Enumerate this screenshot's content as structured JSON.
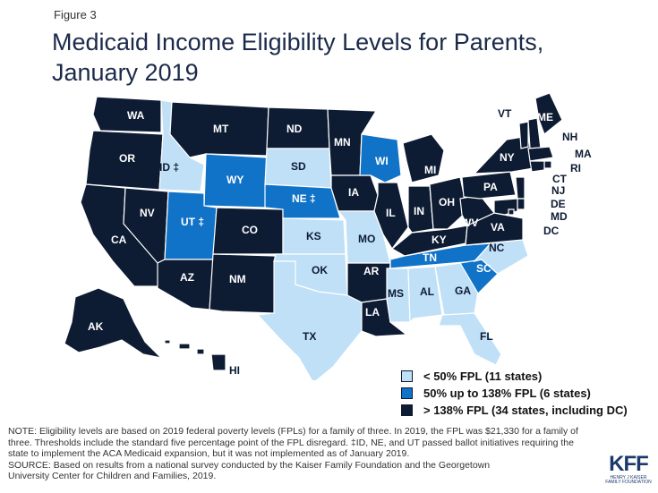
{
  "figure_label": "Figure 3",
  "title_line1": "Medicaid Income Eligibility Levels for Parents,",
  "title_line2": "January 2019",
  "colors": {
    "accent": "#1274c4",
    "dark": "#0d1b33",
    "mid": "#1173c7",
    "light": "#bfe0f7",
    "border": "#ffffff"
  },
  "legend": [
    {
      "label": "< 50% FPL (11 states)",
      "category": "light"
    },
    {
      "label": "50% up to 138% FPL (6 states)",
      "category": "mid"
    },
    {
      "label": "> 138% FPL (34 states, including DC)",
      "category": "dark"
    }
  ],
  "states": [
    {
      "abbr": "WA",
      "category": "dark"
    },
    {
      "abbr": "OR",
      "category": "dark"
    },
    {
      "abbr": "CA",
      "category": "dark"
    },
    {
      "abbr": "NV",
      "category": "dark"
    },
    {
      "abbr": "ID ‡",
      "category": "light"
    },
    {
      "abbr": "MT",
      "category": "dark"
    },
    {
      "abbr": "WY",
      "category": "mid"
    },
    {
      "abbr": "UT ‡",
      "category": "mid"
    },
    {
      "abbr": "AZ",
      "category": "dark"
    },
    {
      "abbr": "CO",
      "category": "dark"
    },
    {
      "abbr": "NM",
      "category": "dark"
    },
    {
      "abbr": "ND",
      "category": "dark"
    },
    {
      "abbr": "SD",
      "category": "light"
    },
    {
      "abbr": "NE ‡",
      "category": "mid"
    },
    {
      "abbr": "KS",
      "category": "light"
    },
    {
      "abbr": "OK",
      "category": "light"
    },
    {
      "abbr": "TX",
      "category": "light"
    },
    {
      "abbr": "MN",
      "category": "dark"
    },
    {
      "abbr": "IA",
      "category": "dark"
    },
    {
      "abbr": "MO",
      "category": "light"
    },
    {
      "abbr": "AR",
      "category": "dark"
    },
    {
      "abbr": "LA",
      "category": "dark"
    },
    {
      "abbr": "WI",
      "category": "mid"
    },
    {
      "abbr": "IL",
      "category": "dark"
    },
    {
      "abbr": "MI",
      "category": "dark"
    },
    {
      "abbr": "IN",
      "category": "dark"
    },
    {
      "abbr": "OH",
      "category": "dark"
    },
    {
      "abbr": "KY",
      "category": "dark"
    },
    {
      "abbr": "TN",
      "category": "mid"
    },
    {
      "abbr": "MS",
      "category": "light"
    },
    {
      "abbr": "AL",
      "category": "light"
    },
    {
      "abbr": "GA",
      "category": "light"
    },
    {
      "abbr": "FL",
      "category": "light"
    },
    {
      "abbr": "SC",
      "category": "mid"
    },
    {
      "abbr": "NC",
      "category": "light"
    },
    {
      "abbr": "VA",
      "category": "dark"
    },
    {
      "abbr": "WV",
      "category": "dark"
    },
    {
      "abbr": "PA",
      "category": "dark"
    },
    {
      "abbr": "NY",
      "category": "dark"
    },
    {
      "abbr": "VT",
      "category": "dark"
    },
    {
      "abbr": "NH",
      "category": "dark"
    },
    {
      "abbr": "ME",
      "category": "dark"
    },
    {
      "abbr": "MA",
      "category": "dark"
    },
    {
      "abbr": "RI",
      "category": "dark"
    },
    {
      "abbr": "CT",
      "category": "dark"
    },
    {
      "abbr": "NJ",
      "category": "dark"
    },
    {
      "abbr": "DE",
      "category": "dark"
    },
    {
      "abbr": "MD",
      "category": "dark"
    },
    {
      "abbr": "DC",
      "category": "dark"
    },
    {
      "abbr": "AK",
      "category": "dark"
    },
    {
      "abbr": "HI",
      "category": "dark"
    }
  ],
  "note_lines": [
    "NOTE: Eligibility levels are based on 2019 federal poverty levels (FPLs) for a family of three. In 2019, the FPL was $21,330 for a family of",
    "three. Thresholds include the standard five percentage point of the FPL disregard. ‡ID, NE, and UT passed ballot initiatives requiring the",
    "state to implement the ACA Medicaid expansion, but it was not implemented as of January 2019.",
    "SOURCE: Based on results from a national survey conducted by the Kaiser Family Foundation and the Georgetown",
    "University Center for Children and Families, 2019."
  ],
  "logo": {
    "mark": "KFF",
    "sub1": "HENRY J KAISER",
    "sub2": "FAMILY FOUNDATION"
  }
}
